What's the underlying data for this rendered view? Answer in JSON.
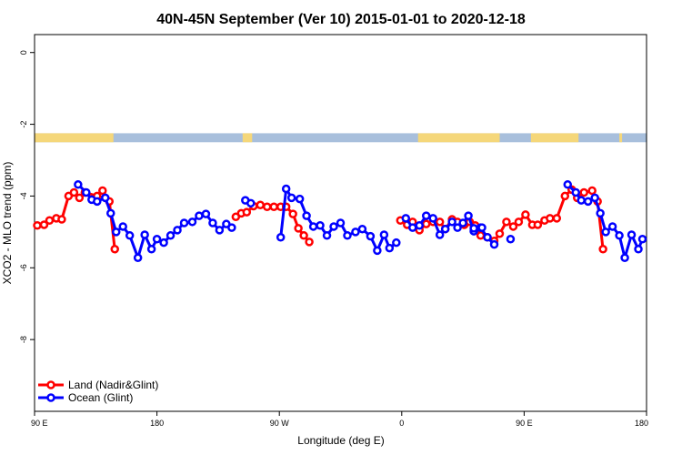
{
  "chart_data": {
    "type": "line",
    "title": "40N-45N September (Ver 10)   2015-01-01 to 2020-12-18",
    "xlabel": "Longitude (deg E)",
    "ylabel": "XCO2 - MLO trend (ppm)",
    "xlim": [
      90,
      540
    ],
    "ylim": [
      -10,
      0.5
    ],
    "x_ticks": [
      {
        "value": 90,
        "label": "90 E"
      },
      {
        "value": 180,
        "label": "180"
      },
      {
        "value": 270,
        "label": "90 W"
      },
      {
        "value": 360,
        "label": "0"
      },
      {
        "value": 450,
        "label": "90 E"
      },
      {
        "value": 540,
        "label": "180"
      }
    ],
    "y_ticks": [
      {
        "value": 0,
        "label": "0"
      },
      {
        "value": -2,
        "label": "-2"
      },
      {
        "value": -4,
        "label": "-4"
      },
      {
        "value": -6,
        "label": "-6"
      },
      {
        "value": -8,
        "label": "-8"
      }
    ],
    "landmask": {
      "y_range": [
        -2.5,
        -2.25
      ],
      "land_color": "#f5d77a",
      "ocean_color": "#a8bfdc",
      "land_segments": [
        [
          90,
          148
        ],
        [
          243,
          250
        ],
        [
          372,
          432
        ],
        [
          455,
          490
        ],
        [
          520,
          522
        ]
      ]
    },
    "legend_position": "bottom-left",
    "series": [
      {
        "name": "Land (Nadir&Glint)",
        "color": "#ff0000",
        "segments": [
          [
            [
              92,
              -4.82
            ],
            [
              97,
              -4.8
            ],
            [
              101,
              -4.68
            ],
            [
              106,
              -4.62
            ],
            [
              110,
              -4.65
            ],
            [
              115,
              -4.0
            ],
            [
              119,
              -3.9
            ],
            [
              123,
              -4.05
            ],
            [
              127,
              -3.9
            ],
            [
              136,
              -4.0
            ],
            [
              140,
              -3.85
            ],
            [
              145,
              -4.15
            ],
            [
              149,
              -5.48
            ]
          ],
          [
            [
              238,
              -4.58
            ],
            [
              242,
              -4.48
            ],
            [
              246,
              -4.45
            ],
            [
              251,
              -4.28
            ],
            [
              256,
              -4.25
            ],
            [
              261,
              -4.3
            ],
            [
              266,
              -4.3
            ],
            [
              271,
              -4.3
            ],
            [
              275,
              -4.3
            ],
            [
              280,
              -4.5
            ],
            [
              284,
              -4.9
            ],
            [
              288,
              -5.1
            ],
            [
              292,
              -5.28
            ]
          ],
          [
            [
              359,
              -4.68
            ],
            [
              364,
              -4.8
            ],
            [
              368,
              -4.72
            ],
            [
              373,
              -4.95
            ],
            [
              378,
              -4.78
            ],
            [
              383,
              -4.72
            ],
            [
              388,
              -4.72
            ],
            [
              392,
              -4.92
            ],
            [
              397,
              -4.65
            ],
            [
              401,
              -4.72
            ],
            [
              406,
              -4.8
            ],
            [
              410,
              -4.72
            ],
            [
              414,
              -4.82
            ],
            [
              418,
              -5.1
            ],
            [
              423,
              -5.15
            ],
            [
              428,
              -5.25
            ],
            [
              432,
              -5.05
            ],
            [
              437,
              -4.72
            ],
            [
              442,
              -4.85
            ],
            [
              446,
              -4.72
            ],
            [
              451,
              -4.52
            ],
            [
              456,
              -4.8
            ],
            [
              460,
              -4.8
            ],
            [
              465,
              -4.68
            ],
            [
              469,
              -4.62
            ],
            [
              474,
              -4.62
            ],
            [
              480,
              -4.0
            ],
            [
              485,
              -3.82
            ],
            [
              489,
              -4.05
            ],
            [
              494,
              -3.9
            ],
            [
              500,
              -3.85
            ],
            [
              504,
              -4.15
            ],
            [
              508,
              -5.48
            ]
          ]
        ]
      },
      {
        "name": "Ocean (Glint)",
        "color": "#0000ff",
        "segments": [
          [
            [
              122,
              -3.68
            ],
            [
              128,
              -3.9
            ],
            [
              132,
              -4.1
            ],
            [
              136,
              -4.15
            ],
            [
              142,
              -4.05
            ],
            [
              146,
              -4.48
            ],
            [
              150,
              -5.0
            ],
            [
              155,
              -4.85
            ],
            [
              160,
              -5.1
            ],
            [
              166,
              -5.72
            ],
            [
              171,
              -5.08
            ],
            [
              176,
              -5.48
            ],
            [
              180,
              -5.2
            ],
            [
              185,
              -5.3
            ],
            [
              190,
              -5.1
            ],
            [
              195,
              -4.95
            ],
            [
              200,
              -4.75
            ],
            [
              206,
              -4.72
            ],
            [
              211,
              -4.55
            ],
            [
              216,
              -4.5
            ],
            [
              221,
              -4.75
            ],
            [
              226,
              -4.95
            ],
            [
              231,
              -4.78
            ],
            [
              235,
              -4.88
            ]
          ],
          [
            [
              245,
              -4.12
            ],
            [
              249,
              -4.2
            ]
          ],
          [
            [
              271,
              -5.15
            ],
            [
              275,
              -3.8
            ],
            [
              279,
              -4.05
            ],
            [
              285,
              -4.08
            ],
            [
              290,
              -4.55
            ],
            [
              295,
              -4.85
            ],
            [
              300,
              -4.82
            ],
            [
              305,
              -5.1
            ],
            [
              310,
              -4.85
            ],
            [
              315,
              -4.75
            ],
            [
              320,
              -5.1
            ],
            [
              326,
              -5.0
            ],
            [
              331,
              -4.92
            ],
            [
              337,
              -5.12
            ],
            [
              342,
              -5.52
            ],
            [
              347,
              -5.08
            ],
            [
              351,
              -5.45
            ],
            [
              356,
              -5.3
            ]
          ],
          [
            [
              363,
              -4.62
            ],
            [
              368,
              -4.88
            ],
            [
              373,
              -4.82
            ],
            [
              378,
              -4.55
            ],
            [
              383,
              -4.62
            ],
            [
              388,
              -5.08
            ],
            [
              392,
              -4.92
            ],
            [
              397,
              -4.72
            ],
            [
              401,
              -4.88
            ],
            [
              405,
              -4.75
            ],
            [
              409,
              -4.55
            ],
            [
              413,
              -4.98
            ],
            [
              418,
              -4.88
            ],
            [
              423,
              -5.15
            ],
            [
              428,
              -5.35
            ]
          ],
          [
            [
              413,
              -4.9
            ],
            [
              419,
              -4.88
            ]
          ],
          [
            [
              440,
              -5.2
            ]
          ],
          [
            [
              482,
              -3.68
            ],
            [
              488,
              -3.9
            ],
            [
              492,
              -4.12
            ],
            [
              497,
              -4.15
            ],
            [
              502,
              -4.05
            ],
            [
              506,
              -4.48
            ],
            [
              510,
              -5.0
            ],
            [
              515,
              -4.85
            ],
            [
              520,
              -5.1
            ],
            [
              524,
              -5.72
            ],
            [
              529,
              -5.08
            ],
            [
              534,
              -5.48
            ],
            [
              537,
              -5.2
            ]
          ]
        ]
      }
    ]
  }
}
